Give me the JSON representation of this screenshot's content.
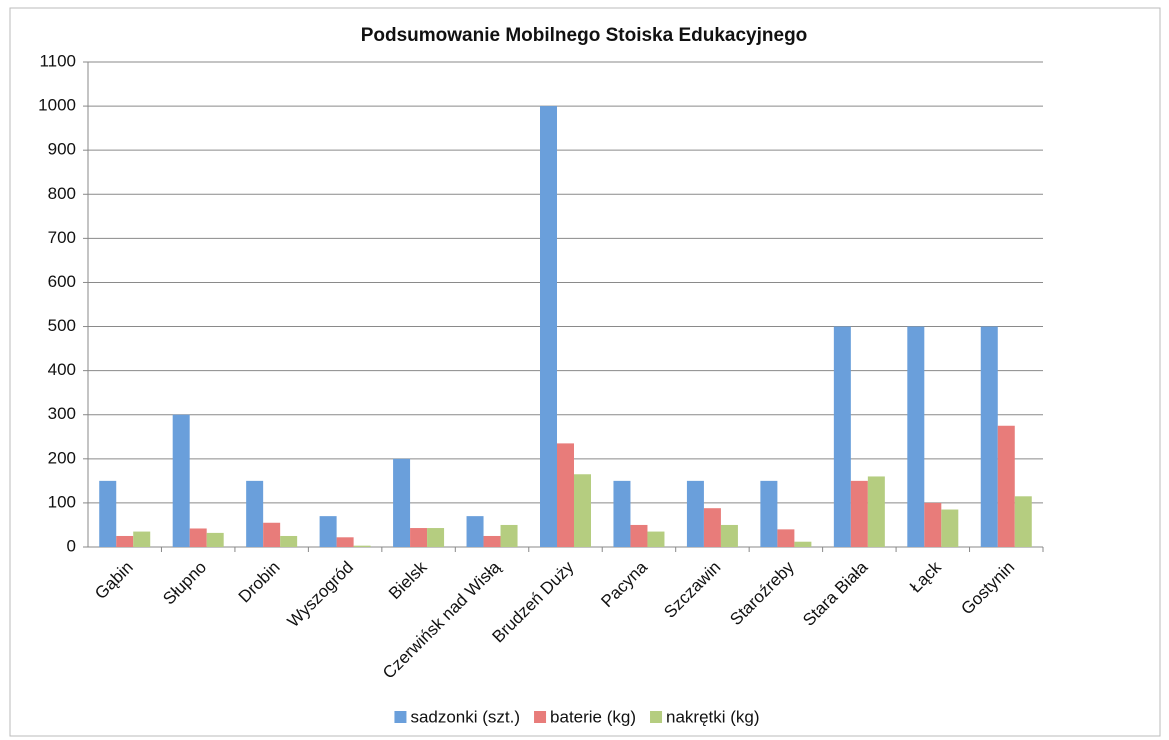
{
  "chart_data": {
    "type": "bar",
    "title": "Podsumowanie Mobilnego Stoiska Edukacyjnego",
    "categories": [
      "Gąbin",
      "Słupno",
      "Drobin",
      "Wyszogród",
      "Bielsk",
      "Czerwińsk nad Wisłą",
      "Brudzeń Duży",
      "Pacyna",
      "Szczawin",
      "Staroźreby",
      "Stara Biała",
      "Łąck",
      "Gostynin"
    ],
    "series": [
      {
        "name": "sadzonki (szt.)",
        "color": "#6a9fdb",
        "values": [
          150,
          300,
          150,
          70,
          200,
          70,
          1000,
          150,
          150,
          150,
          500,
          500,
          500
        ]
      },
      {
        "name": "baterie (kg)",
        "color": "#e87c7a",
        "values": [
          25,
          42,
          55,
          22,
          43,
          25,
          235,
          50,
          88,
          40,
          150,
          100,
          275
        ]
      },
      {
        "name": "nakrętki (kg)",
        "color": "#b5cd80",
        "values": [
          35,
          32,
          25,
          3,
          43,
          50,
          165,
          35,
          50,
          12,
          160,
          85,
          115
        ]
      }
    ],
    "ylim": [
      0,
      1100
    ],
    "yticks": [
      0,
      100,
      200,
      300,
      400,
      500,
      600,
      700,
      800,
      900,
      1000,
      1100
    ],
    "grid": true,
    "legend": "bottom"
  }
}
